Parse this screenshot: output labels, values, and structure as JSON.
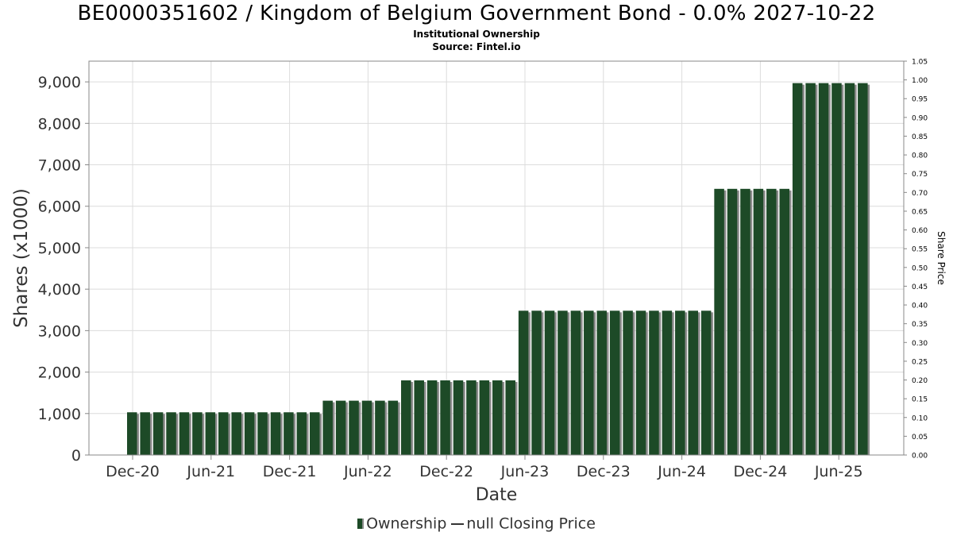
{
  "chart_data": {
    "type": "bar",
    "title": "BE0000351602 / Kingdom of Belgium Government Bond - 0.0% 2027-10-22",
    "subtitle": [
      "Institutional Ownership",
      "Source: Fintel.io"
    ],
    "xlabel": "Date",
    "ylabel": "Shares (x1000)",
    "y2label": "Share Price",
    "ylim": [
      0,
      9500
    ],
    "y2lim": [
      0,
      1.05
    ],
    "yticks": [
      "0",
      "1,000",
      "2,000",
      "3,000",
      "4,000",
      "5,000",
      "6,000",
      "7,000",
      "8,000",
      "9,000"
    ],
    "y2ticks": [
      "0.00",
      "0.05",
      "0.10",
      "0.15",
      "0.20",
      "0.25",
      "0.30",
      "0.35",
      "0.40",
      "0.45",
      "0.50",
      "0.55",
      "0.60",
      "0.65",
      "0.70",
      "0.75",
      "0.80",
      "0.85",
      "0.90",
      "0.95",
      "1.00",
      "1.05"
    ],
    "xticks": [
      "Dec-20",
      "Jun-21",
      "Dec-21",
      "Jun-22",
      "Dec-22",
      "Jun-23",
      "Dec-23",
      "Jun-24",
      "Dec-24",
      "Jun-25"
    ],
    "grid": true,
    "legend_position": "bottom-center",
    "series": [
      {
        "name": "Ownership",
        "values": [
          1030,
          1030,
          1030,
          1030,
          1030,
          1030,
          1030,
          1030,
          1030,
          1030,
          1030,
          1030,
          1030,
          1030,
          1030,
          1310,
          1310,
          1310,
          1310,
          1310,
          1310,
          1800,
          1800,
          1800,
          1800,
          1800,
          1800,
          1800,
          1800,
          1800,
          3480,
          3480,
          3480,
          3480,
          3480,
          3480,
          3480,
          3480,
          3480,
          3480,
          3480,
          3480,
          3480,
          3480,
          3480,
          6420,
          6420,
          6420,
          6420,
          6420,
          6420,
          8970,
          8970,
          8970,
          8970,
          8970,
          8970
        ]
      },
      {
        "name": "null Closing Price",
        "values": []
      }
    ]
  },
  "legend": {
    "ownership": "Ownership",
    "price": "null Closing Price"
  },
  "colors": {
    "bar": "#1d4a27",
    "bar_shadow": "#8a8a8a",
    "grid": "#dcdcdc",
    "axis": "#888888"
  }
}
